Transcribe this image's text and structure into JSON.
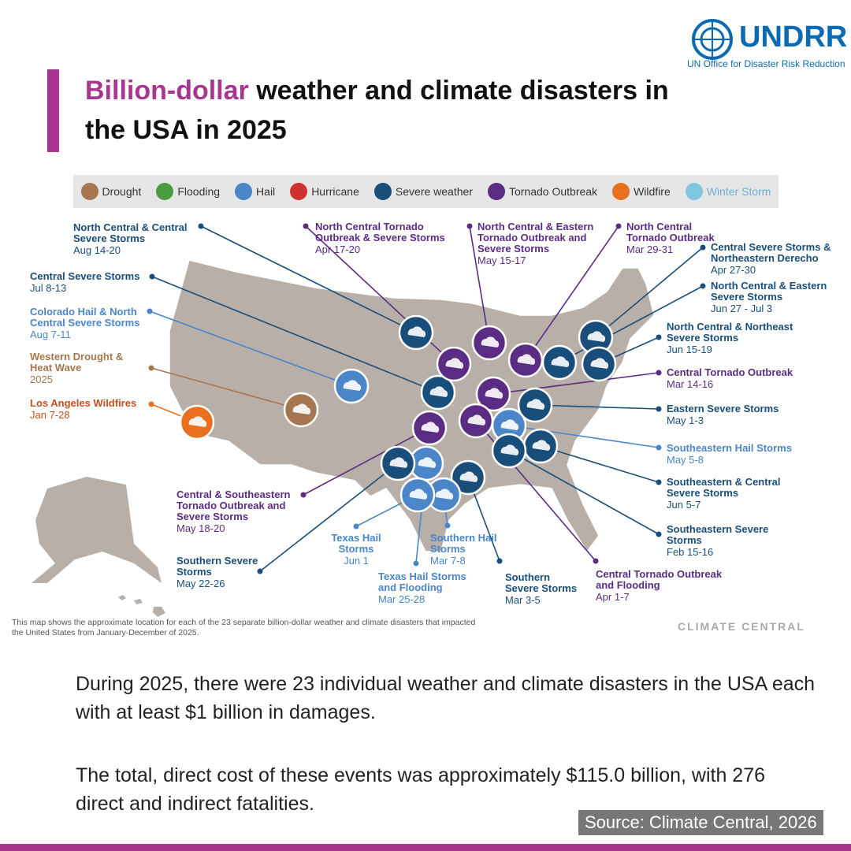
{
  "header": {
    "org": "UNDRR",
    "org_subtitle": "UN Office for Disaster Risk Reduction",
    "title_highlight": "Billion-dollar",
    "title_rest": "weather and climate disasters in the USA in 2025"
  },
  "legend": [
    {
      "label": "Drought",
      "color": "#a57650"
    },
    {
      "label": "Flooding",
      "color": "#4a9a3f"
    },
    {
      "label": "Hail",
      "color": "#4a86c8"
    },
    {
      "label": "Hurricane",
      "color": "#d0312d"
    },
    {
      "label": "Severe weather",
      "color": "#1a4e7a"
    },
    {
      "label": "Tornado Outbreak",
      "color": "#5b2c83"
    },
    {
      "label": "Wildfire",
      "color": "#e8701e"
    },
    {
      "label": "Winter Storm",
      "color": "#7fc6e0"
    }
  ],
  "events": [
    {
      "name": "North Central & Central Severe Storms",
      "date": "Aug 14-20",
      "color": "#1a4e7a"
    },
    {
      "name": "Central Severe Storms",
      "date": "Jul 8-13",
      "color": "#1a4e7a"
    },
    {
      "name": "Colorado Hail & North Central Severe Storms",
      "date": "Aug 7-11",
      "color": "#4a86c8"
    },
    {
      "name": "Western Drought & Heat Wave",
      "date": "2025",
      "color": "#a57650"
    },
    {
      "name": "Los Angeles Wildfires",
      "date": "Jan 7-28",
      "color": "#e8701e"
    },
    {
      "name": "North Central Tornado Outbreak & Severe Storms",
      "date": "Apr 17-20",
      "color": "#5b2c83"
    },
    {
      "name": "North Central & Eastern Tornado Outbreak and Severe Storms",
      "date": "May 15-17",
      "color": "#5b2c83"
    },
    {
      "name": "North Central Tornado Outbreak",
      "date": "Mar 29-31",
      "color": "#5b2c83"
    },
    {
      "name": "Central Severe Storms & Northeastern Derecho",
      "date": "Apr 27-30",
      "color": "#1a4e7a"
    },
    {
      "name": "North Central & Eastern Severe Storms",
      "date": "Jun 27 - Jul 3",
      "color": "#1a4e7a"
    },
    {
      "name": "North Central & Northeast Severe Storms",
      "date": "Jun 15-19",
      "color": "#1a4e7a"
    },
    {
      "name": "Central Tornado Outbreak",
      "date": "Mar 14-16",
      "color": "#5b2c83"
    },
    {
      "name": "Eastern Severe Storms",
      "date": "May 1-3",
      "color": "#1a4e7a"
    },
    {
      "name": "Southeastern Hail Storms",
      "date": "May 5-8",
      "color": "#4a86c8"
    },
    {
      "name": "Southeastern & Central Severe Storms",
      "date": "Jun 5-7",
      "color": "#1a4e7a"
    },
    {
      "name": "Southeastern Severe Storms",
      "date": "Feb 15-16",
      "color": "#1a4e7a"
    },
    {
      "name": "Central Tornado Outbreak and Flooding",
      "date": "Apr 1-7",
      "color": "#5b2c83"
    },
    {
      "name": "Southern Severe Storms",
      "date": "Mar 3-5",
      "color": "#1a4e7a"
    },
    {
      "name": "Southern Hail Storms",
      "date": "Mar 7-8",
      "color": "#4a86c8"
    },
    {
      "name": "Texas Hail Storms and Flooding",
      "date": "Mar 25-28",
      "color": "#4a86c8"
    },
    {
      "name": "Texas Hail Storms",
      "date": "Jun 1",
      "color": "#4a86c8"
    },
    {
      "name": "Southern Severe Storms",
      "date": "May 22-26",
      "color": "#1a4e7a"
    },
    {
      "name": "Central & Southeastern Tornado Outbreak and Severe Storms",
      "date": "May 18-20",
      "color": "#5b2c83"
    }
  ],
  "map_note": "This map shows the approximate location for each of the 23 separate billion-dollar weather and climate disasters that impacted the United States from January-December of 2025.",
  "credit": "CLIMATE CENTRAL",
  "body": [
    "During 2025, there were 23 individual weather and climate disasters in the USA each with at least $1 billion in damages.",
    "The total, direct cost of these events was approximately $115.0 billion, with 276 direct and indirect fatalities."
  ],
  "source": "Source: Climate Central, 2026"
}
